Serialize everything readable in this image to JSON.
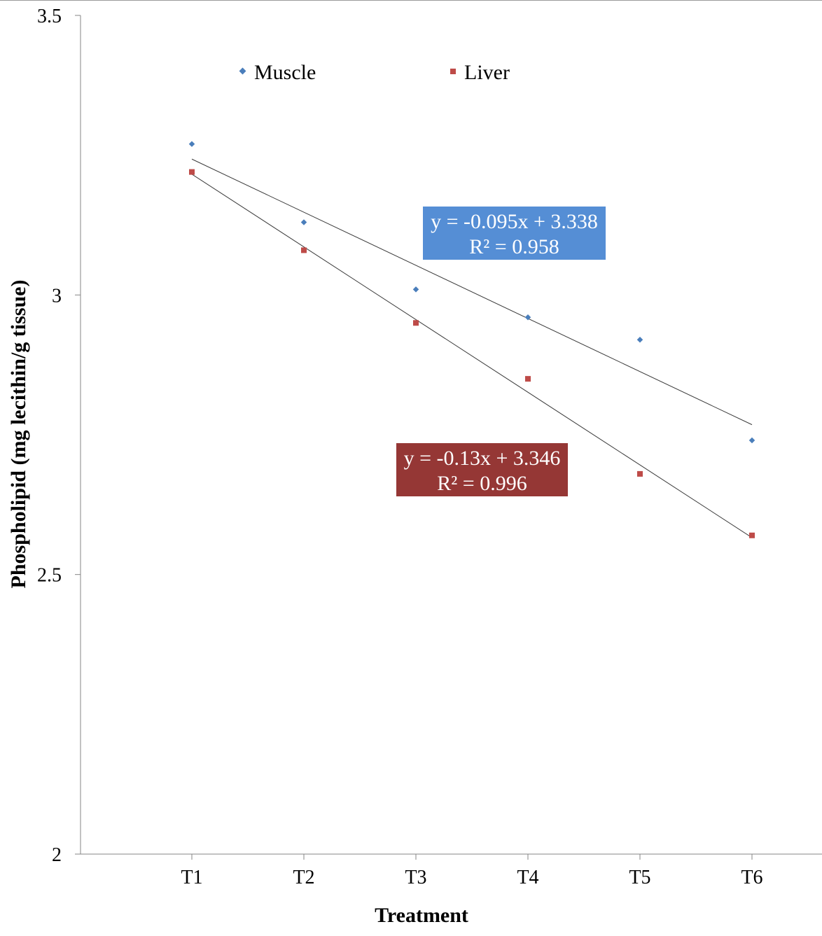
{
  "chart_data": {
    "type": "scatter",
    "title": "",
    "xlabel": "Treatment",
    "ylabel": "Phospholipid (mg lecithin/g tissue)",
    "categories": [
      "T1",
      "T2",
      "T3",
      "T4",
      "T5",
      "T6"
    ],
    "ylim": [
      2,
      3.5
    ],
    "yticks": [
      "2",
      "2.5",
      "3",
      "3.5"
    ],
    "yticks_values": [
      2,
      2.5,
      3,
      3.5
    ],
    "grid": false,
    "legend_position": "top",
    "series": [
      {
        "name": "Muscle",
        "marker": "diamond",
        "color": "#4a7ebb",
        "values": [
          3.27,
          3.13,
          3.01,
          2.96,
          2.92,
          2.74
        ],
        "trendline": {
          "slope": -0.095,
          "intercept": 3.338,
          "equation": "y = -0.095x + 3.338",
          "r2": "R² = 0.958",
          "box_color": "#558ed5"
        }
      },
      {
        "name": "Liver",
        "marker": "square",
        "color": "#be4b48",
        "values": [
          3.22,
          3.08,
          2.95,
          2.85,
          2.68,
          2.57
        ],
        "trendline": {
          "slope": -0.13,
          "intercept": 3.346,
          "equation": "y = -0.13x + 3.346",
          "r2": "R² = 0.996",
          "box_color": "#953735"
        }
      }
    ]
  }
}
